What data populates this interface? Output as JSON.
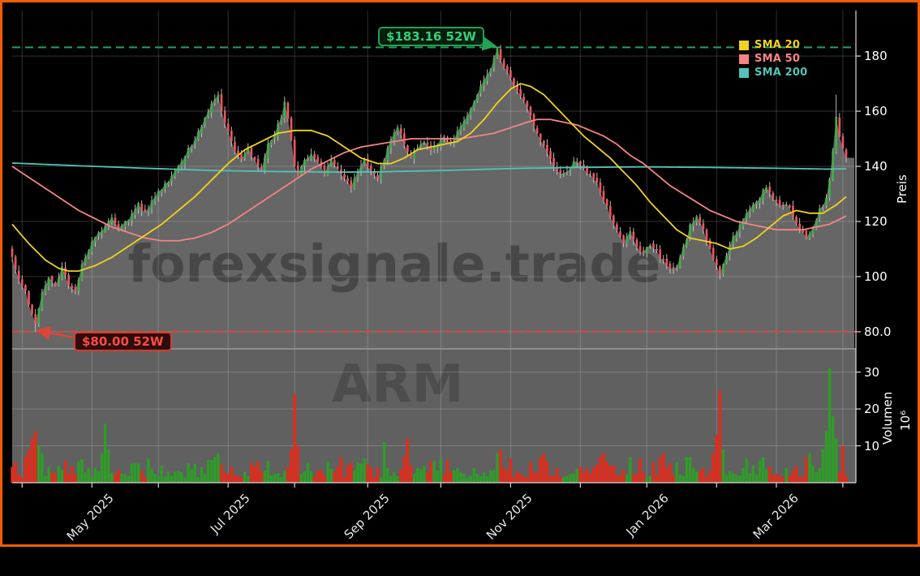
{
  "window": {
    "border_color": "#f25c05",
    "background": "#000000"
  },
  "chart_data": {
    "type": "candlestick",
    "symbol_watermark": "ARM",
    "site_watermark": "forexsignale.trade",
    "days": 252,
    "price_axis": {
      "label": "Preis",
      "ticks": [
        {
          "label": "180",
          "value": 180
        },
        {
          "label": "160",
          "value": 160
        },
        {
          "label": "140",
          "value": 140
        },
        {
          "label": "120",
          "value": 120
        },
        {
          "label": "100",
          "value": 100
        },
        {
          "label": "80.0",
          "value": 80
        }
      ],
      "range": [
        73.8,
        196.5
      ]
    },
    "volume_axis": {
      "label": "Volumen",
      "scale_label": "10⁶",
      "ticks": [
        {
          "label": "30",
          "value": 30
        },
        {
          "label": "20",
          "value": 20
        },
        {
          "label": "10",
          "value": 10
        }
      ],
      "range": [
        0,
        36.3
      ]
    },
    "x_axis": {
      "major_ticks": [
        {
          "label": "May 2025",
          "day": 24
        },
        {
          "label": "Jul 2025",
          "day": 65
        },
        {
          "label": "Sep 2025",
          "day": 107
        },
        {
          "label": "Nov 2025",
          "day": 150
        },
        {
          "label": "Jan 2026",
          "day": 191
        },
        {
          "label": "Mar 2026",
          "day": 230
        }
      ],
      "minor_tick_days": [
        3,
        44,
        85,
        129,
        171,
        212,
        250
      ]
    },
    "annotations": {
      "high": {
        "label": "$183.16 52W",
        "value": 183.16,
        "day": 146,
        "text_color": "#35d07a",
        "line_color": "#22a257"
      },
      "low": {
        "label": "$80.00 52W",
        "value": 80.0,
        "day": 7,
        "text_color": "#ff4d42",
        "line_color": "#e0443a"
      }
    },
    "legend": [
      {
        "label": "SMA 20",
        "color": "#f2d21f"
      },
      {
        "label": "SMA 50",
        "color": "#f58484"
      },
      {
        "label": "SMA 200",
        "color": "#4fc4b7"
      }
    ],
    "colors": {
      "candle_up": "#3fae49",
      "candle_down": "#ef5360",
      "wick": "#cccccc",
      "volume_up": "#2e9e27",
      "volume_down": "#e52a18",
      "area_fill": "#666666",
      "volume_panel": "#606060",
      "grid": "rgba(255,255,255,0.19)",
      "spine": "#d9d9d9",
      "separator": "#9c9c9c",
      "watermark": "#474747",
      "symbol_watermark_color": "#4d4d4d",
      "sma20": "#f2d21f",
      "sma50": "#f58484",
      "sma200": "#4fc4b7"
    },
    "price_close_anchors": [
      [
        0,
        107
      ],
      [
        2,
        99
      ],
      [
        4,
        95
      ],
      [
        6,
        86
      ],
      [
        7,
        83
      ],
      [
        9,
        94
      ],
      [
        11,
        100
      ],
      [
        13,
        96
      ],
      [
        15,
        103
      ],
      [
        17,
        97
      ],
      [
        19,
        94
      ],
      [
        21,
        105
      ],
      [
        24,
        112
      ],
      [
        27,
        117
      ],
      [
        30,
        122
      ],
      [
        32,
        117
      ],
      [
        35,
        121
      ],
      [
        38,
        126
      ],
      [
        40,
        123
      ],
      [
        43,
        129
      ],
      [
        46,
        133
      ],
      [
        49,
        138
      ],
      [
        52,
        144
      ],
      [
        55,
        150
      ],
      [
        57,
        155
      ],
      [
        59,
        160
      ],
      [
        61,
        164
      ],
      [
        62,
        166
      ],
      [
        63,
        160
      ],
      [
        65,
        152
      ],
      [
        67,
        146
      ],
      [
        69,
        142
      ],
      [
        71,
        147
      ],
      [
        73,
        142
      ],
      [
        75,
        139
      ],
      [
        77,
        148
      ],
      [
        79,
        152
      ],
      [
        81,
        158
      ],
      [
        82,
        163
      ],
      [
        84,
        150
      ],
      [
        85,
        140
      ],
      [
        86,
        136
      ],
      [
        88,
        142
      ],
      [
        90,
        145
      ],
      [
        92,
        141
      ],
      [
        94,
        138
      ],
      [
        96,
        142
      ],
      [
        98,
        139
      ],
      [
        100,
        136
      ],
      [
        102,
        133
      ],
      [
        104,
        138
      ],
      [
        106,
        142
      ],
      [
        108,
        139
      ],
      [
        110,
        136
      ],
      [
        112,
        142
      ],
      [
        114,
        150
      ],
      [
        116,
        154
      ],
      [
        118,
        148
      ],
      [
        120,
        144
      ],
      [
        122,
        147
      ],
      [
        124,
        149
      ],
      [
        126,
        146
      ],
      [
        128,
        148
      ],
      [
        130,
        151
      ],
      [
        132,
        148
      ],
      [
        134,
        152
      ],
      [
        136,
        157
      ],
      [
        138,
        161
      ],
      [
        140,
        166
      ],
      [
        142,
        171
      ],
      [
        144,
        176
      ],
      [
        145,
        179
      ],
      [
        146,
        182
      ],
      [
        147,
        178
      ],
      [
        149,
        174
      ],
      [
        152,
        168
      ],
      [
        155,
        161
      ],
      [
        158,
        152
      ],
      [
        160,
        147
      ],
      [
        162,
        143
      ],
      [
        164,
        139
      ],
      [
        166,
        137
      ],
      [
        168,
        140
      ],
      [
        170,
        142
      ],
      [
        172,
        139
      ],
      [
        174,
        137
      ],
      [
        176,
        134
      ],
      [
        178,
        128
      ],
      [
        180,
        122
      ],
      [
        182,
        117
      ],
      [
        184,
        113
      ],
      [
        186,
        116
      ],
      [
        188,
        111
      ],
      [
        190,
        108
      ],
      [
        192,
        112
      ],
      [
        194,
        109
      ],
      [
        196,
        106
      ],
      [
        198,
        103
      ],
      [
        200,
        104
      ],
      [
        202,
        110
      ],
      [
        204,
        118
      ],
      [
        206,
        122
      ],
      [
        208,
        117
      ],
      [
        210,
        110
      ],
      [
        212,
        104
      ],
      [
        213,
        100
      ],
      [
        215,
        108
      ],
      [
        217,
        114
      ],
      [
        219,
        118
      ],
      [
        221,
        122
      ],
      [
        223,
        126
      ],
      [
        225,
        129
      ],
      [
        227,
        132
      ],
      [
        229,
        128
      ],
      [
        231,
        125
      ],
      [
        233,
        127
      ],
      [
        235,
        122
      ],
      [
        237,
        117
      ],
      [
        239,
        114
      ],
      [
        241,
        118
      ],
      [
        243,
        124
      ],
      [
        245,
        128
      ],
      [
        246,
        135
      ],
      [
        247,
        146
      ],
      [
        248,
        158
      ],
      [
        249,
        151
      ],
      [
        250,
        146
      ],
      [
        251,
        143
      ]
    ],
    "sma20_anchors": [
      [
        0,
        119
      ],
      [
        5,
        112
      ],
      [
        10,
        106
      ],
      [
        14,
        103
      ],
      [
        17,
        102
      ],
      [
        20,
        102
      ],
      [
        25,
        104
      ],
      [
        30,
        107
      ],
      [
        35,
        111
      ],
      [
        40,
        115
      ],
      [
        45,
        119
      ],
      [
        50,
        124
      ],
      [
        55,
        129
      ],
      [
        60,
        135
      ],
      [
        65,
        141
      ],
      [
        70,
        146
      ],
      [
        75,
        149
      ],
      [
        80,
        152
      ],
      [
        85,
        153
      ],
      [
        90,
        153
      ],
      [
        95,
        151
      ],
      [
        100,
        147
      ],
      [
        105,
        143
      ],
      [
        110,
        141
      ],
      [
        114,
        141
      ],
      [
        118,
        143
      ],
      [
        122,
        146
      ],
      [
        126,
        147
      ],
      [
        130,
        148
      ],
      [
        134,
        149
      ],
      [
        138,
        152
      ],
      [
        142,
        157
      ],
      [
        146,
        163
      ],
      [
        150,
        168
      ],
      [
        153,
        170
      ],
      [
        156,
        169
      ],
      [
        160,
        166
      ],
      [
        164,
        161
      ],
      [
        168,
        156
      ],
      [
        172,
        151
      ],
      [
        176,
        147
      ],
      [
        180,
        143
      ],
      [
        184,
        138
      ],
      [
        188,
        133
      ],
      [
        192,
        127
      ],
      [
        196,
        122
      ],
      [
        200,
        117
      ],
      [
        204,
        114
      ],
      [
        208,
        113
      ],
      [
        212,
        112
      ],
      [
        216,
        110
      ],
      [
        220,
        111
      ],
      [
        224,
        114
      ],
      [
        228,
        118
      ],
      [
        232,
        122
      ],
      [
        236,
        124
      ],
      [
        240,
        123
      ],
      [
        244,
        123
      ],
      [
        248,
        126
      ],
      [
        251,
        129
      ]
    ],
    "sma50_anchors": [
      [
        0,
        140
      ],
      [
        5,
        136
      ],
      [
        10,
        132
      ],
      [
        15,
        128
      ],
      [
        20,
        124
      ],
      [
        25,
        121
      ],
      [
        30,
        118
      ],
      [
        35,
        116
      ],
      [
        40,
        114
      ],
      [
        45,
        113
      ],
      [
        50,
        113
      ],
      [
        55,
        114
      ],
      [
        60,
        116
      ],
      [
        65,
        119
      ],
      [
        70,
        123
      ],
      [
        75,
        127
      ],
      [
        80,
        131
      ],
      [
        85,
        135
      ],
      [
        90,
        139
      ],
      [
        95,
        142
      ],
      [
        100,
        145
      ],
      [
        105,
        147
      ],
      [
        110,
        148
      ],
      [
        115,
        149
      ],
      [
        120,
        150
      ],
      [
        125,
        150
      ],
      [
        130,
        150
      ],
      [
        135,
        150
      ],
      [
        140,
        151
      ],
      [
        145,
        152
      ],
      [
        150,
        154
      ],
      [
        155,
        156
      ],
      [
        158,
        157
      ],
      [
        162,
        157
      ],
      [
        166,
        156
      ],
      [
        170,
        155
      ],
      [
        174,
        153
      ],
      [
        178,
        151
      ],
      [
        182,
        148
      ],
      [
        186,
        144
      ],
      [
        190,
        141
      ],
      [
        194,
        137
      ],
      [
        198,
        133
      ],
      [
        202,
        130
      ],
      [
        206,
        127
      ],
      [
        210,
        124
      ],
      [
        214,
        122
      ],
      [
        218,
        120
      ],
      [
        222,
        119
      ],
      [
        226,
        118
      ],
      [
        230,
        117
      ],
      [
        234,
        117
      ],
      [
        238,
        117
      ],
      [
        242,
        118
      ],
      [
        246,
        119
      ],
      [
        251,
        122
      ]
    ],
    "sma200_anchors": [
      [
        0,
        141.2
      ],
      [
        20,
        140.2
      ],
      [
        40,
        139.3
      ],
      [
        60,
        138.5
      ],
      [
        80,
        138.1
      ],
      [
        100,
        137.9
      ],
      [
        110,
        138.0
      ],
      [
        130,
        138.5
      ],
      [
        150,
        139.2
      ],
      [
        170,
        139.6
      ],
      [
        190,
        139.8
      ],
      [
        210,
        139.6
      ],
      [
        230,
        139.3
      ],
      [
        245,
        139.0
      ],
      [
        251,
        139.1
      ]
    ],
    "volume_spikes": {
      "4": 7,
      "5": 9,
      "6": 12,
      "7": 14,
      "8": 10,
      "9": 8,
      "27": 8,
      "28": 16,
      "29": 9,
      "61": 7,
      "62": 8,
      "84": 9,
      "85": 24,
      "86": 10,
      "99": 7,
      "112": 11,
      "118": 7,
      "119": 12,
      "146": 8,
      "147": 9,
      "159": 7,
      "160": 8,
      "177": 7,
      "178": 8,
      "186": 7,
      "195": 7,
      "196": 8,
      "203": 7,
      "204": 7,
      "211": 8,
      "212": 13,
      "213": 25,
      "214": 9,
      "225": 6,
      "226": 7,
      "239": 7,
      "240": 8,
      "244": 9,
      "245": 14,
      "246": 31,
      "247": 18,
      "248": 12,
      "250": 10
    }
  }
}
